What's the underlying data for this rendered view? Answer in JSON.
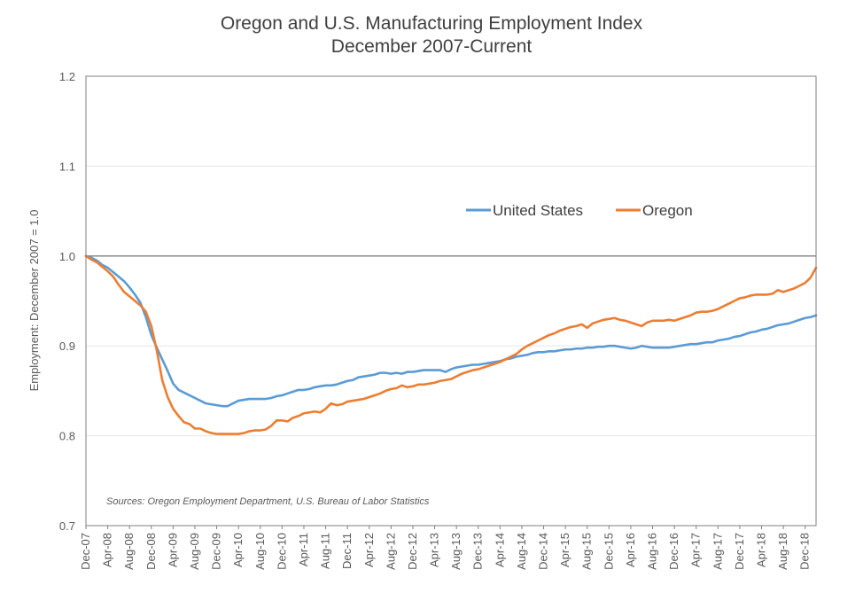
{
  "chart_data": {
    "type": "line",
    "title_line1": "Oregon and U.S. Manufacturing Employment Index",
    "title_line2": "December 2007-Current",
    "ylabel": "Employment: December 2007 = 1.0",
    "xlabel": "",
    "ylim": [
      0.7,
      1.2
    ],
    "yticks": [
      "0.7",
      "0.8",
      "0.9",
      "1.0",
      "1.1",
      "1.2"
    ],
    "reference_line": 1.0,
    "grid": true,
    "legend_position": "upper-middle",
    "source": "Sources: Oregon Employment Department, U.S. Bureau of Labor Statistics",
    "x_tick_labels": [
      "Dec-07",
      "Apr-08",
      "Aug-08",
      "Dec-08",
      "Apr-09",
      "Aug-09",
      "Dec-09",
      "Apr-10",
      "Aug-10",
      "Dec-10",
      "Apr-11",
      "Aug-11",
      "Dec-11",
      "Apr-12",
      "Aug-12",
      "Dec-12",
      "Apr-13",
      "Aug-13",
      "Dec-13",
      "Apr-14",
      "Aug-14",
      "Dec-14",
      "Apr-15",
      "Aug-15",
      "Dec-15",
      "Apr-16",
      "Aug-16",
      "Dec-16",
      "Apr-17",
      "Aug-17",
      "Dec-17",
      "Apr-18",
      "Aug-18",
      "Dec-18"
    ],
    "series": [
      {
        "name": "United States",
        "color": "#5b9bd5",
        "values": [
          1.0,
          0.998,
          0.995,
          0.99,
          0.987,
          0.982,
          0.977,
          0.972,
          0.965,
          0.957,
          0.948,
          0.932,
          0.912,
          0.898,
          0.885,
          0.872,
          0.858,
          0.851,
          0.848,
          0.845,
          0.842,
          0.839,
          0.836,
          0.835,
          0.834,
          0.833,
          0.833,
          0.836,
          0.839,
          0.84,
          0.841,
          0.841,
          0.841,
          0.841,
          0.842,
          0.844,
          0.845,
          0.847,
          0.849,
          0.851,
          0.851,
          0.852,
          0.854,
          0.855,
          0.856,
          0.856,
          0.857,
          0.859,
          0.861,
          0.862,
          0.865,
          0.866,
          0.867,
          0.868,
          0.87,
          0.87,
          0.869,
          0.87,
          0.869,
          0.871,
          0.871,
          0.872,
          0.873,
          0.873,
          0.873,
          0.873,
          0.871,
          0.874,
          0.876,
          0.877,
          0.878,
          0.879,
          0.879,
          0.88,
          0.881,
          0.882,
          0.883,
          0.885,
          0.886,
          0.888,
          0.889,
          0.89,
          0.892,
          0.893,
          0.893,
          0.894,
          0.894,
          0.895,
          0.896,
          0.896,
          0.897,
          0.897,
          0.898,
          0.898,
          0.899,
          0.899,
          0.9,
          0.9,
          0.899,
          0.898,
          0.897,
          0.898,
          0.9,
          0.899,
          0.898,
          0.898,
          0.898,
          0.898,
          0.899,
          0.9,
          0.901,
          0.902,
          0.902,
          0.903,
          0.904,
          0.904,
          0.906,
          0.907,
          0.908,
          0.91,
          0.911,
          0.913,
          0.915,
          0.916,
          0.918,
          0.919,
          0.921,
          0.923,
          0.924,
          0.925,
          0.927,
          0.929,
          0.931,
          0.932,
          0.934
        ]
      },
      {
        "name": "Oregon",
        "color": "#ed7d31",
        "values": [
          1.0,
          0.996,
          0.993,
          0.988,
          0.983,
          0.977,
          0.968,
          0.96,
          0.955,
          0.95,
          0.945,
          0.938,
          0.922,
          0.895,
          0.862,
          0.843,
          0.83,
          0.822,
          0.815,
          0.813,
          0.808,
          0.808,
          0.805,
          0.803,
          0.802,
          0.802,
          0.802,
          0.802,
          0.802,
          0.803,
          0.805,
          0.806,
          0.806,
          0.807,
          0.811,
          0.817,
          0.817,
          0.816,
          0.82,
          0.822,
          0.825,
          0.826,
          0.827,
          0.826,
          0.83,
          0.836,
          0.834,
          0.835,
          0.838,
          0.839,
          0.84,
          0.841,
          0.843,
          0.845,
          0.847,
          0.85,
          0.852,
          0.853,
          0.856,
          0.854,
          0.855,
          0.857,
          0.857,
          0.858,
          0.859,
          0.861,
          0.862,
          0.863,
          0.866,
          0.869,
          0.871,
          0.873,
          0.874,
          0.876,
          0.878,
          0.88,
          0.882,
          0.885,
          0.888,
          0.891,
          0.896,
          0.9,
          0.903,
          0.906,
          0.909,
          0.912,
          0.914,
          0.917,
          0.919,
          0.921,
          0.922,
          0.924,
          0.92,
          0.925,
          0.927,
          0.929,
          0.93,
          0.931,
          0.929,
          0.928,
          0.926,
          0.924,
          0.922,
          0.926,
          0.928,
          0.928,
          0.928,
          0.929,
          0.928,
          0.93,
          0.932,
          0.934,
          0.937,
          0.938,
          0.938,
          0.939,
          0.941,
          0.944,
          0.947,
          0.95,
          0.953,
          0.954,
          0.956,
          0.957,
          0.957,
          0.957,
          0.958,
          0.962,
          0.96,
          0.962,
          0.964,
          0.967,
          0.97,
          0.976,
          0.987
        ]
      }
    ]
  }
}
